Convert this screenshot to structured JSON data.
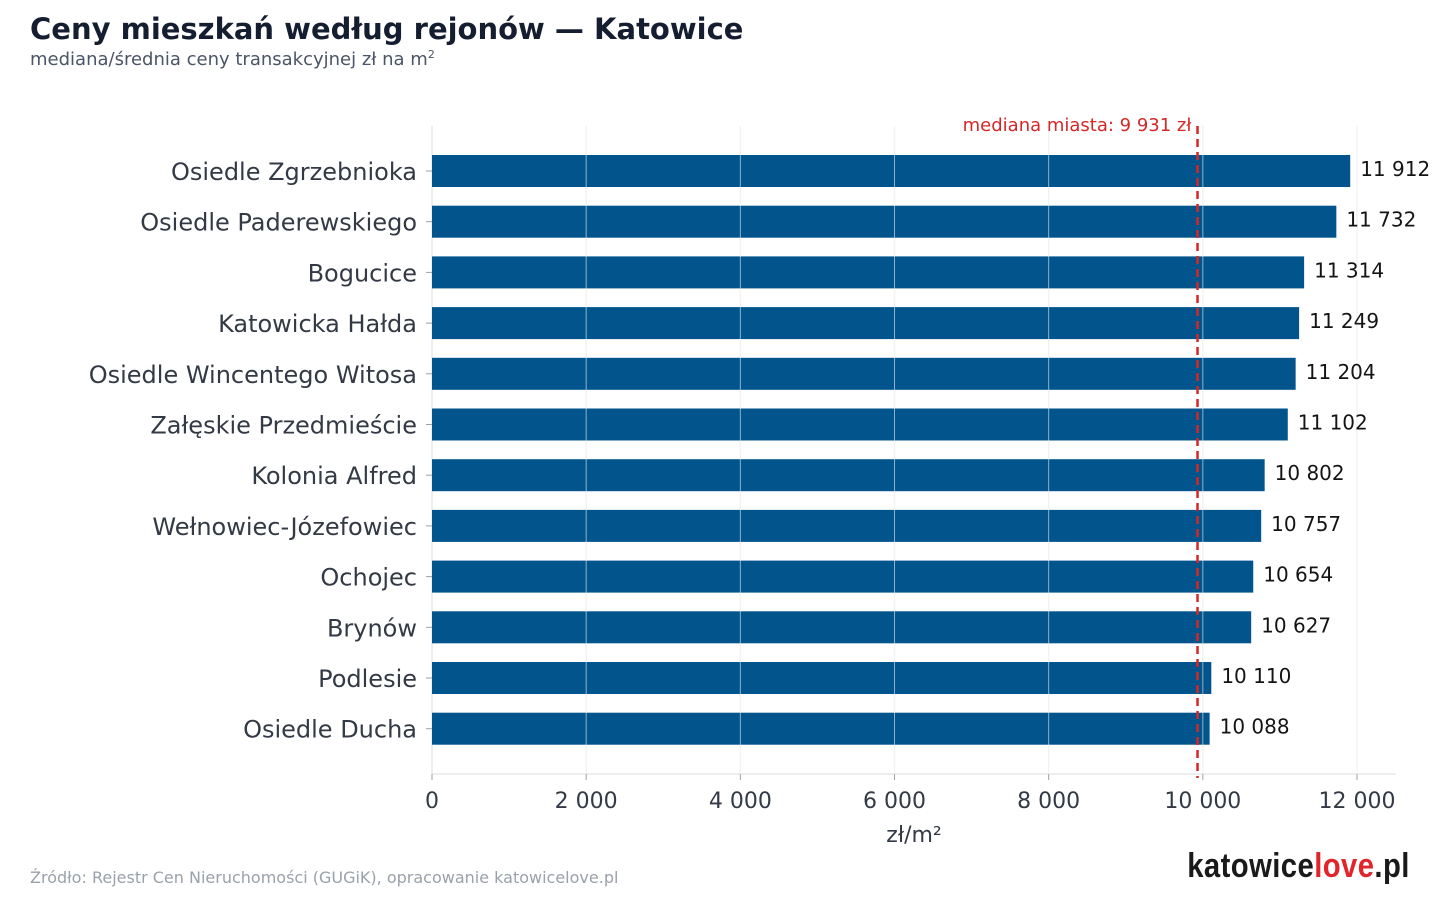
{
  "title": "Ceny mieszkań według rejonów — Katowice",
  "subtitle_text": "mediana/średnia ceny transakcyjnej zł na m",
  "subtitle_sup": "2",
  "source": "Źródło: Rejestr Cen Nieruchomości (GUGiK), opracowanie katowicelove.pl",
  "logo": {
    "part1": "katowice",
    "part2": "love",
    "part3": ".pl"
  },
  "colors": {
    "bar": "#02548c",
    "median_line": "#d62728",
    "logo_accent": "#e0262b"
  },
  "chart_data": {
    "type": "bar",
    "orientation": "horizontal",
    "categories": [
      "Osiedle Zgrzebnioka",
      "Osiedle Paderewskiego",
      "Bogucice",
      "Katowicka Hałda",
      "Osiedle Wincentego Witosa",
      "Załęskie Przedmieście",
      "Kolonia Alfred",
      "Wełnowiec-Józefowiec",
      "Ochojec",
      "Brynów",
      "Podlesie",
      "Osiedle Ducha"
    ],
    "values": [
      11912,
      11732,
      11314,
      11249,
      11204,
      11102,
      10802,
      10757,
      10654,
      10627,
      10110,
      10088
    ],
    "value_labels": [
      "11 912",
      "11 732",
      "11 314",
      "11 249",
      "11 204",
      "11 102",
      "10 802",
      "10 757",
      "10 654",
      "10 627",
      "10 110",
      "10 088"
    ],
    "xlabel": "zł/m²",
    "xlim": [
      0,
      12500
    ],
    "xticks": [
      0,
      2000,
      4000,
      6000,
      8000,
      10000,
      12000
    ],
    "xtick_labels": [
      "0",
      "2 000",
      "4 000",
      "6 000",
      "8 000",
      "10 000",
      "12 000"
    ],
    "grid": true,
    "reference_line": {
      "value": 9931,
      "label": "mediana miasta: 9 931 zł",
      "style": "dashed"
    }
  }
}
